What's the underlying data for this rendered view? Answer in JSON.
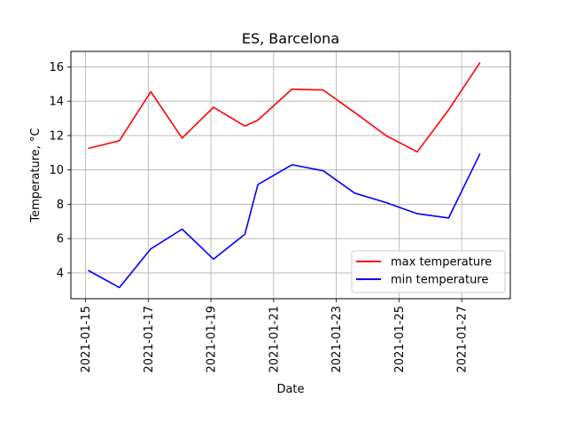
{
  "chart_data": {
    "type": "line",
    "title": "ES, Barcelona",
    "xlabel": "Date",
    "ylabel": "Temperature, °C",
    "x": [
      "2021-01-15T02:00",
      "2021-01-16T02:00",
      "2021-01-17T02:00",
      "2021-01-18T02:00",
      "2021-01-19T02:00",
      "2021-01-20T02:00",
      "2021-01-20T12:00",
      "2021-01-21T14:00",
      "2021-01-22T14:00",
      "2021-01-23T14:00",
      "2021-01-24T14:00",
      "2021-01-25T14:00",
      "2021-01-26T14:00",
      "2021-01-27T14:00"
    ],
    "series": [
      {
        "name": "max temperature",
        "color": "#ff0000",
        "values": [
          11.25,
          11.7,
          14.55,
          11.85,
          13.65,
          12.55,
          12.9,
          14.7,
          14.65,
          13.35,
          12.0,
          11.05,
          13.5,
          16.25
        ]
      },
      {
        "name": "min temperature",
        "color": "#0000ff",
        "values": [
          4.15,
          3.15,
          5.4,
          6.55,
          4.8,
          6.25,
          9.15,
          10.3,
          9.95,
          8.65,
          8.1,
          7.45,
          7.2,
          10.95
        ]
      }
    ],
    "xticks": [
      "2021-01-15",
      "2021-01-17",
      "2021-01-19",
      "2021-01-21",
      "2021-01-23",
      "2021-01-25",
      "2021-01-27"
    ],
    "xlim": [
      "2021-01-14T12:48",
      "2021-01-28T13:12"
    ],
    "yticks": [
      4,
      6,
      8,
      10,
      12,
      14,
      16
    ],
    "ylim": [
      2.5,
      16.9
    ],
    "grid": true,
    "legend": "lower-right"
  }
}
